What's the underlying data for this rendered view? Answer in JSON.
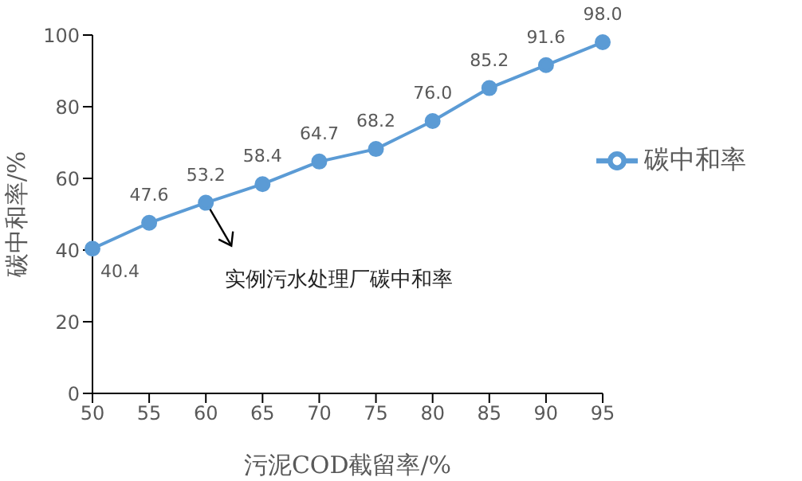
{
  "chart_data": {
    "type": "line",
    "xlabel": "污泥COD截留率/%",
    "ylabel": "碳中和率/%",
    "x": [
      50,
      55,
      60,
      65,
      70,
      75,
      80,
      85,
      90,
      95
    ],
    "series": [
      {
        "name": "碳中和率",
        "color": "#5b9bd5",
        "values": [
          40.4,
          47.6,
          53.2,
          58.4,
          64.7,
          68.2,
          76.0,
          85.2,
          91.6,
          98.0
        ],
        "value_labels": [
          "40.4",
          "47.6",
          "53.2",
          "58.4",
          "64.7",
          "68.2",
          "76.0",
          "85.2",
          "91.6",
          "98.0"
        ]
      }
    ],
    "xlim": [
      50,
      95
    ],
    "xticks": [
      50,
      55,
      60,
      65,
      70,
      75,
      80,
      85,
      90,
      95
    ],
    "ylim": [
      0,
      100
    ],
    "yticks": [
      0,
      20,
      40,
      60,
      80,
      100
    ],
    "grid": false,
    "legend": "right",
    "marker": "circle",
    "line_style": "solid",
    "annotations": [
      {
        "text": "实例污水处理厂碳中和率",
        "x": 60,
        "y": 53.2
      }
    ]
  }
}
